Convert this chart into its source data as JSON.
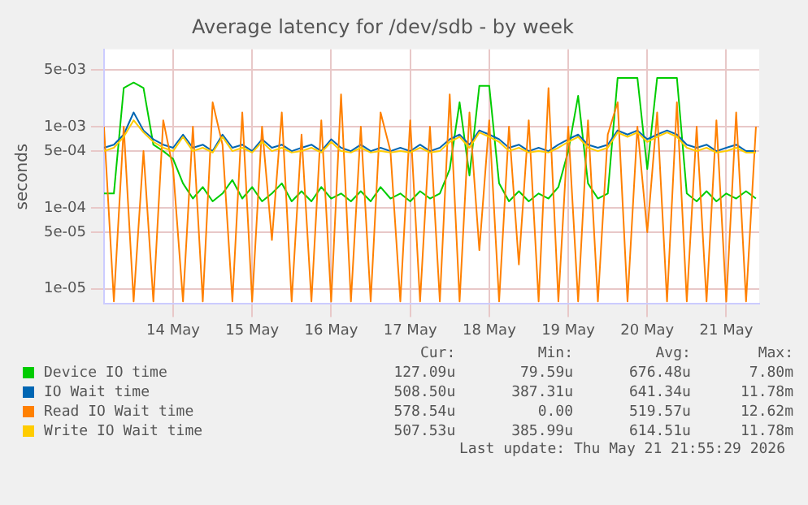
{
  "chart_data": {
    "type": "line",
    "title": "Average latency for /dev/sdb - by week",
    "ylabel": "seconds",
    "log": true,
    "grid": true,
    "legend": "bottom",
    "marker": "none",
    "line_style": "solid",
    "ylim": [
      6.5e-06,
      0.009
    ],
    "yticks": [
      {
        "value": 1e-05,
        "label": "1e-05"
      },
      {
        "value": 5e-05,
        "label": "5e-05"
      },
      {
        "value": 0.0001,
        "label": "1e-04"
      },
      {
        "value": 0.0005,
        "label": "5e-04"
      },
      {
        "value": 0.001,
        "label": "1e-03"
      },
      {
        "value": 0.005,
        "label": "5e-03"
      }
    ],
    "xlim": [
      "2026-05-13T15:00",
      "2026-05-21T22:00"
    ],
    "xticks": [
      {
        "value": "2026-05-14T12:00",
        "label": "14 May"
      },
      {
        "value": "2026-05-15T12:00",
        "label": "15 May"
      },
      {
        "value": "2026-05-16T12:00",
        "label": "16 May"
      },
      {
        "value": "2026-05-17T12:00",
        "label": "17 May"
      },
      {
        "value": "2026-05-18T12:00",
        "label": "18 May"
      },
      {
        "value": "2026-05-19T12:00",
        "label": "19 May"
      },
      {
        "value": "2026-05-20T12:00",
        "label": "20 May"
      },
      {
        "value": "2026-05-21T12:00",
        "label": "21 May"
      }
    ],
    "x": [
      "2026-05-13T15:00",
      "2026-05-13T18:00",
      "2026-05-13T21:00",
      "2026-05-14T00:00",
      "2026-05-14T03:00",
      "2026-05-14T06:00",
      "2026-05-14T09:00",
      "2026-05-14T12:00",
      "2026-05-14T15:00",
      "2026-05-14T18:00",
      "2026-05-14T21:00",
      "2026-05-15T00:00",
      "2026-05-15T03:00",
      "2026-05-15T06:00",
      "2026-05-15T09:00",
      "2026-05-15T12:00",
      "2026-05-15T15:00",
      "2026-05-15T18:00",
      "2026-05-15T21:00",
      "2026-05-16T00:00",
      "2026-05-16T03:00",
      "2026-05-16T06:00",
      "2026-05-16T09:00",
      "2026-05-16T12:00",
      "2026-05-16T15:00",
      "2026-05-16T18:00",
      "2026-05-16T21:00",
      "2026-05-17T00:00",
      "2026-05-17T03:00",
      "2026-05-17T06:00",
      "2026-05-17T09:00",
      "2026-05-17T12:00",
      "2026-05-17T15:00",
      "2026-05-17T18:00",
      "2026-05-17T21:00",
      "2026-05-18T00:00",
      "2026-05-18T03:00",
      "2026-05-18T06:00",
      "2026-05-18T09:00",
      "2026-05-18T12:00",
      "2026-05-18T15:00",
      "2026-05-18T18:00",
      "2026-05-18T21:00",
      "2026-05-19T00:00",
      "2026-05-19T03:00",
      "2026-05-19T06:00",
      "2026-05-19T09:00",
      "2026-05-19T12:00",
      "2026-05-19T15:00",
      "2026-05-19T18:00",
      "2026-05-19T21:00",
      "2026-05-20T00:00",
      "2026-05-20T03:00",
      "2026-05-20T06:00",
      "2026-05-20T09:00",
      "2026-05-20T12:00",
      "2026-05-20T15:00",
      "2026-05-20T18:00",
      "2026-05-20T21:00",
      "2026-05-21T00:00",
      "2026-05-21T03:00",
      "2026-05-21T06:00",
      "2026-05-21T09:00",
      "2026-05-21T12:00",
      "2026-05-21T15:00",
      "2026-05-21T18:00",
      "2026-05-21T21:00"
    ],
    "series": [
      {
        "name": "Device IO time",
        "color": "#00cc00",
        "values": [
          0.00015,
          0.00015,
          0.003,
          0.0035,
          0.003,
          0.0006,
          0.0005,
          0.0004,
          0.0002,
          0.00013,
          0.00018,
          0.00012,
          0.00015,
          0.00022,
          0.00013,
          0.00018,
          0.00012,
          0.00015,
          0.0002,
          0.00012,
          0.00016,
          0.00012,
          0.00018,
          0.00013,
          0.00015,
          0.00012,
          0.00016,
          0.00012,
          0.00018,
          0.00013,
          0.00015,
          0.00012,
          0.00016,
          0.00013,
          0.00015,
          0.0003,
          0.002,
          0.00025,
          0.0032,
          0.0032,
          0.0002,
          0.00012,
          0.00016,
          0.00012,
          0.00015,
          0.00013,
          0.00018,
          0.0005,
          0.0024,
          0.0002,
          0.00013,
          0.00015,
          0.004,
          0.004,
          0.004,
          0.0003,
          0.004,
          0.004,
          0.004,
          0.00015,
          0.00012,
          0.00016,
          0.00012,
          0.00015,
          0.00013,
          0.00016,
          0.00013
        ]
      },
      {
        "name": "IO Wait time",
        "color": "#0066b3",
        "values": [
          0.00055,
          0.0006,
          0.0008,
          0.0015,
          0.0009,
          0.0007,
          0.0006,
          0.00055,
          0.0008,
          0.00055,
          0.0006,
          0.0005,
          0.0008,
          0.00055,
          0.0006,
          0.0005,
          0.0007,
          0.00055,
          0.0006,
          0.0005,
          0.00055,
          0.0006,
          0.0005,
          0.0007,
          0.00055,
          0.0005,
          0.0006,
          0.0005,
          0.00055,
          0.0005,
          0.00055,
          0.0005,
          0.0006,
          0.0005,
          0.00055,
          0.0007,
          0.0008,
          0.0006,
          0.0009,
          0.0008,
          0.0007,
          0.00055,
          0.0006,
          0.0005,
          0.00055,
          0.0005,
          0.0006,
          0.0007,
          0.0008,
          0.0006,
          0.00055,
          0.0006,
          0.0009,
          0.0008,
          0.0009,
          0.0007,
          0.0008,
          0.0009,
          0.0008,
          0.0006,
          0.00055,
          0.0006,
          0.0005,
          0.00055,
          0.0006,
          0.0005,
          0.0005
        ]
      },
      {
        "name": "Read IO Wait time",
        "color": "#ff8000",
        "values": [
          0.001,
          7e-06,
          0.001,
          7e-06,
          0.0005,
          7e-06,
          0.0012,
          0.0003,
          7e-06,
          0.001,
          7e-06,
          0.002,
          0.0006,
          7e-06,
          0.0015,
          7e-06,
          0.001,
          4e-05,
          0.0015,
          7e-06,
          0.0008,
          7e-06,
          0.0012,
          7e-06,
          0.0025,
          7e-06,
          0.001,
          7e-06,
          0.0015,
          0.0005,
          7e-06,
          0.0012,
          7e-06,
          0.001,
          7e-06,
          0.0025,
          7e-06,
          0.0015,
          3e-05,
          0.0012,
          7e-06,
          0.001,
          2e-05,
          0.0012,
          7e-06,
          0.003,
          7e-06,
          0.001,
          7e-06,
          0.0012,
          7e-06,
          0.0008,
          0.002,
          7e-06,
          0.001,
          5e-05,
          0.0015,
          7e-06,
          0.002,
          7e-06,
          0.001,
          7e-06,
          0.0012,
          7e-06,
          0.0015,
          7e-06,
          0.001
        ]
      },
      {
        "name": "Write IO Wait time",
        "color": "#ffcc00",
        "values": [
          0.0005,
          0.00055,
          0.00075,
          0.0012,
          0.00085,
          0.00065,
          0.00055,
          0.0005,
          0.00075,
          0.0005,
          0.00055,
          0.00048,
          0.00075,
          0.0005,
          0.00055,
          0.00048,
          0.00065,
          0.0005,
          0.00055,
          0.00048,
          0.0005,
          0.00055,
          0.00048,
          0.00065,
          0.0005,
          0.00048,
          0.00055,
          0.00048,
          0.0005,
          0.00048,
          0.0005,
          0.00048,
          0.00055,
          0.00048,
          0.0005,
          0.00065,
          0.00075,
          0.00055,
          0.00085,
          0.00075,
          0.00065,
          0.0005,
          0.00055,
          0.00048,
          0.0005,
          0.00048,
          0.00055,
          0.00065,
          0.00075,
          0.00055,
          0.0005,
          0.00055,
          0.00085,
          0.00075,
          0.00085,
          0.00065,
          0.00075,
          0.00085,
          0.00075,
          0.00055,
          0.0005,
          0.00055,
          0.00048,
          0.0005,
          0.00055,
          0.00048,
          0.00048
        ]
      }
    ],
    "annotations": [
      "Cur:",
      "Min:",
      "Avg:",
      "Max:",
      "127.09u",
      "79.59u",
      "676.48u",
      "7.80m",
      "508.50u",
      "387.31u",
      "641.34u",
      "11.78m",
      "578.54u",
      "0.00",
      "519.57u",
      "12.62m",
      "507.53u",
      "385.99u",
      "614.51u",
      "11.78m",
      "Last update: Thu May 21 21:55:29 2026"
    ]
  }
}
